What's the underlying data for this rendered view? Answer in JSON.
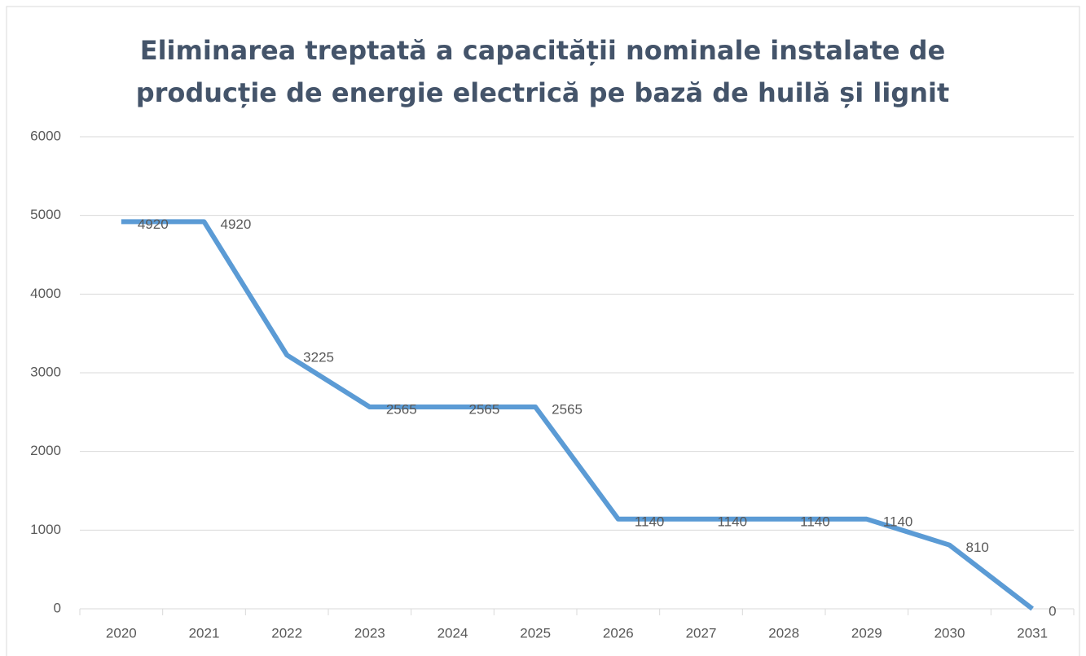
{
  "chart_data": {
    "type": "line",
    "title": "Eliminarea treptată a capacității nominale instalate de producție de energie electrică pe bază de huilă și lignit",
    "categories": [
      "2020",
      "2021",
      "2022",
      "2023",
      "2024",
      "2025",
      "2026",
      "2027",
      "2028",
      "2029",
      "2030",
      "2031"
    ],
    "values": [
      4920,
      4920,
      3225,
      2565,
      2565,
      2565,
      1140,
      1140,
      1140,
      1140,
      810,
      0
    ],
    "color": "#5b9bd5",
    "ylim": [
      0,
      6000
    ],
    "yticks": [
      0,
      1000,
      2000,
      3000,
      4000,
      5000,
      6000
    ],
    "grid": true
  }
}
